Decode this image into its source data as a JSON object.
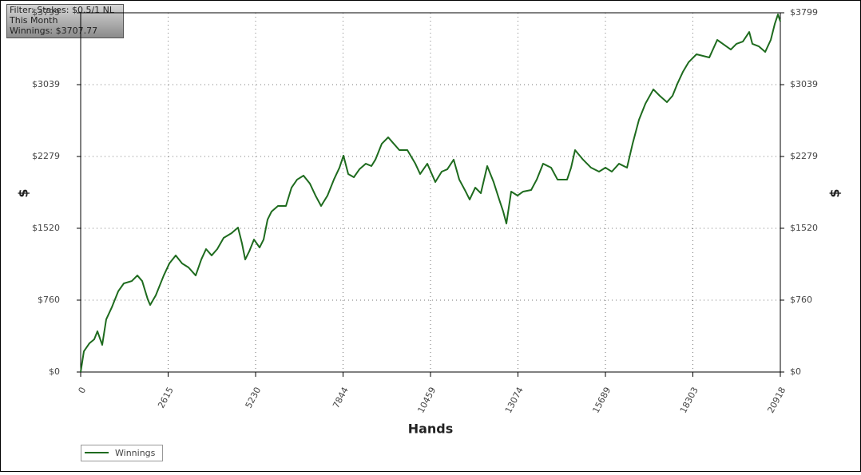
{
  "chart_data": {
    "type": "line",
    "annotations": [
      "Filter: Stakes: $0.5/1 NL",
      "This Month",
      "Winnings: $3707.77"
    ],
    "x_label": "Hands",
    "y_label": "$",
    "xlim": [
      0,
      20918
    ],
    "xticks": [
      0,
      2615,
      5230,
      7844,
      10459,
      13074,
      15689,
      18303,
      20918
    ],
    "ylim": [
      0,
      3799
    ],
    "yticks": [
      {
        "value": 0,
        "label": "$0"
      },
      {
        "value": 760,
        "label": "$760"
      },
      {
        "value": 1520,
        "label": "$1520"
      },
      {
        "value": 2279,
        "label": "$2279"
      },
      {
        "value": 3039,
        "label": "$3039"
      },
      {
        "value": 3799,
        "label": "$3799"
      }
    ],
    "grid": true,
    "legend": "bottom-left",
    "series": [
      {
        "name": "Winnings",
        "color": "#1e6b1e",
        "x": [
          0,
          96,
          263,
          406,
          501,
          645,
          764,
          931,
          1122,
          1290,
          1528,
          1695,
          1839,
          2006,
          2078,
          2245,
          2484,
          2651,
          2842,
          3033,
          3224,
          3439,
          3606,
          3749,
          3916,
          4083,
          4274,
          4513,
          4704,
          4824,
          4919,
          5039,
          5182,
          5349,
          5469,
          5588,
          5707,
          5898,
          6137,
          6304,
          6471,
          6662,
          6854,
          7021,
          7188,
          7379,
          7570,
          7737,
          7857,
          8000,
          8167,
          8334,
          8525,
          8693,
          8812,
          9003,
          9194,
          9361,
          9528,
          9767,
          10006,
          10149,
          10364,
          10603,
          10794,
          10961,
          11152,
          11319,
          11486,
          11630,
          11797,
          11964,
          12155,
          12346,
          12513,
          12633,
          12728,
          12871,
          13062,
          13229,
          13468,
          13635,
          13826,
          14065,
          14256,
          14543,
          14662,
          14781,
          15020,
          15259,
          15498,
          15689,
          15880,
          16095,
          16334,
          16501,
          16692,
          16883,
          17122,
          17313,
          17528,
          17695,
          17838,
          18005,
          18173,
          18411,
          18603,
          18794,
          19032,
          19199,
          19438,
          19606,
          19797,
          19988,
          20083,
          20274,
          20465,
          20632,
          20752,
          20847,
          20918
        ],
        "values": [
          0,
          219,
          304,
          346,
          431,
          287,
          557,
          684,
          853,
          937,
          962,
          1021,
          962,
          768,
          709,
          810,
          1021,
          1148,
          1233,
          1148,
          1106,
          1021,
          1190,
          1300,
          1233,
          1300,
          1418,
          1469,
          1528,
          1359,
          1190,
          1275,
          1401,
          1317,
          1401,
          1612,
          1697,
          1756,
          1756,
          1950,
          2035,
          2077,
          1992,
          1866,
          1756,
          1866,
          2035,
          2161,
          2288,
          2094,
          2060,
          2144,
          2203,
          2178,
          2246,
          2414,
          2482,
          2414,
          2347,
          2347,
          2203,
          2094,
          2203,
          2009,
          2119,
          2144,
          2246,
          2035,
          1925,
          1824,
          1950,
          1891,
          2178,
          2009,
          1824,
          1697,
          1570,
          1908,
          1866,
          1908,
          1925,
          2035,
          2203,
          2161,
          2035,
          2035,
          2161,
          2347,
          2246,
          2161,
          2119,
          2161,
          2119,
          2203,
          2161,
          2414,
          2668,
          2837,
          2989,
          2921,
          2854,
          2921,
          3047,
          3174,
          3275,
          3360,
          3343,
          3326,
          3512,
          3470,
          3410,
          3470,
          3495,
          3596,
          3470,
          3444,
          3385,
          3512,
          3681,
          3782,
          3708
        ]
      }
    ]
  }
}
